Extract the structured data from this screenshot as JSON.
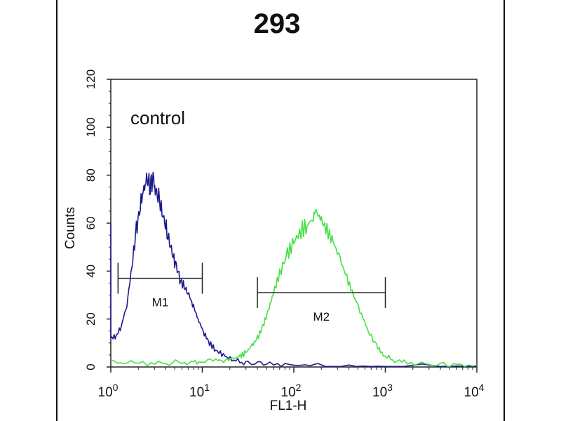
{
  "chart_data": {
    "type": "line",
    "title": "293",
    "xlabel": "FL1-H",
    "ylabel": "Counts",
    "xscale": "log",
    "xlim": [
      1,
      10000
    ],
    "ylim": [
      0,
      120
    ],
    "x_ticks": [
      {
        "base": "10",
        "exp": "0",
        "value": 1
      },
      {
        "base": "10",
        "exp": "1",
        "value": 10
      },
      {
        "base": "10",
        "exp": "2",
        "value": 100
      },
      {
        "base": "10",
        "exp": "3",
        "value": 1000
      },
      {
        "base": "10",
        "exp": "4",
        "value": 10000
      }
    ],
    "y_ticks": [
      "0",
      "20",
      "40",
      "60",
      "80",
      "100",
      "120"
    ],
    "grid": false,
    "annotation": "control",
    "series": [
      {
        "color": "#1a1a8c",
        "points": [
          [
            1.0,
            12
          ],
          [
            1.15,
            13
          ],
          [
            1.3,
            17
          ],
          [
            1.5,
            26
          ],
          [
            1.7,
            42
          ],
          [
            1.9,
            57
          ],
          [
            2.1,
            67
          ],
          [
            2.3,
            75
          ],
          [
            2.5,
            78
          ],
          [
            2.7,
            76
          ],
          [
            2.9,
            78
          ],
          [
            3.1,
            74
          ],
          [
            3.4,
            69
          ],
          [
            3.8,
            62
          ],
          [
            4.2,
            55
          ],
          [
            4.7,
            47
          ],
          [
            5.2,
            42
          ],
          [
            5.8,
            36
          ],
          [
            6.5,
            33
          ],
          [
            7.3,
            29
          ],
          [
            8.2,
            24
          ],
          [
            9.2,
            19
          ],
          [
            10.5,
            14
          ],
          [
            12,
            10
          ],
          [
            14,
            7
          ],
          [
            17,
            5
          ],
          [
            21,
            3
          ],
          [
            27,
            2
          ],
          [
            35,
            1.5
          ],
          [
            50,
            1
          ],
          [
            80,
            0.8
          ],
          [
            150,
            0.5
          ],
          [
            400,
            0.4
          ],
          [
            1000,
            0.3
          ],
          [
            10000,
            0.2
          ]
        ]
      },
      {
        "color": "#44e044",
        "points": [
          [
            1.0,
            2
          ],
          [
            1.5,
            1.5
          ],
          [
            2.5,
            1.5
          ],
          [
            4,
            1.5
          ],
          [
            6,
            2
          ],
          [
            8,
            2
          ],
          [
            10,
            2
          ],
          [
            14,
            2.5
          ],
          [
            18,
            3
          ],
          [
            22,
            3.5
          ],
          [
            26,
            4.5
          ],
          [
            30,
            6
          ],
          [
            35,
            9
          ],
          [
            40,
            12
          ],
          [
            46,
            17
          ],
          [
            52,
            23
          ],
          [
            60,
            31
          ],
          [
            70,
            39
          ],
          [
            85,
            47
          ],
          [
            100,
            52
          ],
          [
            120,
            57
          ],
          [
            140,
            59
          ],
          [
            160,
            62
          ],
          [
            175,
            65
          ],
          [
            200,
            61
          ],
          [
            230,
            57
          ],
          [
            270,
            52
          ],
          [
            320,
            45
          ],
          [
            380,
            37
          ],
          [
            450,
            30
          ],
          [
            550,
            22
          ],
          [
            650,
            15
          ],
          [
            800,
            9
          ],
          [
            950,
            5
          ],
          [
            1200,
            3
          ],
          [
            1600,
            2
          ],
          [
            2500,
            1.5
          ],
          [
            4000,
            1
          ],
          [
            6000,
            1
          ],
          [
            10000,
            0.8
          ]
        ]
      }
    ],
    "markers": [
      {
        "label": "M1",
        "x_start": 1.2,
        "x_end": 10,
        "y": 37
      },
      {
        "label": "M2",
        "x_start": 40,
        "x_end": 1000,
        "y": 31
      }
    ]
  }
}
